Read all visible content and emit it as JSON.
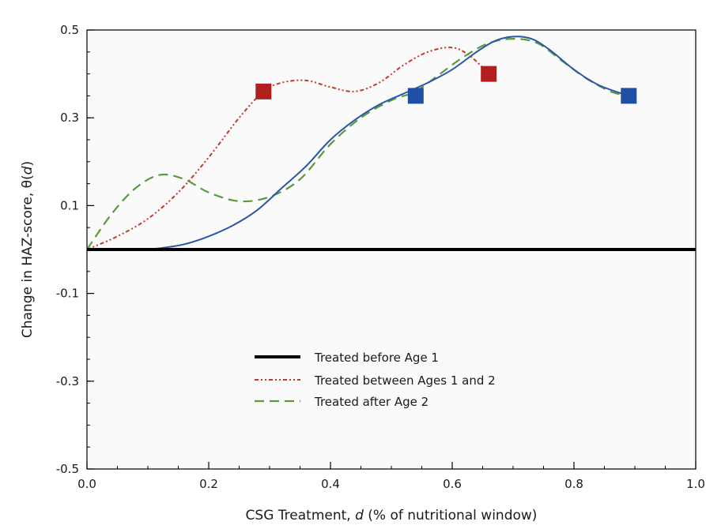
{
  "chart_data": {
    "type": "line",
    "xlabel": "CSG Treatment, d (% of nutritional window)",
    "xlabel_parts": {
      "pre": "CSG Treatment, ",
      "italic": "d",
      "post": " (% of nutritional window)"
    },
    "ylabel": "Change in HAZ-score, θ(d)",
    "ylabel_parts": {
      "pre": "Change in HAZ-score, θ(",
      "italic": "d",
      "post": ")"
    },
    "xlim": [
      0.0,
      1.0
    ],
    "ylim": [
      -0.5,
      0.5
    ],
    "x_ticks": [
      0.0,
      0.2,
      0.4,
      0.6,
      0.8,
      1.0
    ],
    "x_tick_labels": [
      "0.0",
      "0.2",
      "0.4",
      "0.6",
      "0.8",
      "1.0"
    ],
    "y_ticks": [
      0.5,
      0.3,
      0.1,
      -0.1,
      -0.3,
      -0.5
    ],
    "y_tick_labels": [
      "0.5",
      "0.3",
      "0.1",
      "-0.1",
      "-0.3",
      "-0.5"
    ],
    "grid": false,
    "legend_position": "lower-center",
    "plot_background": "#fafafa",
    "series": [
      {
        "name": "Treated before Age 1",
        "color": "#000000",
        "style": "solid-thick",
        "x": [
          0.0,
          1.0
        ],
        "y": [
          0.0,
          0.0
        ]
      },
      {
        "name": "Treated between Ages 1 and 2",
        "color": "#c0392b",
        "style": "dash-dot-dot",
        "x": [
          0.0,
          0.05,
          0.1,
          0.15,
          0.2,
          0.25,
          0.29,
          0.32,
          0.36,
          0.4,
          0.44,
          0.48,
          0.52,
          0.56,
          0.6,
          0.63,
          0.66
        ],
        "y": [
          0.0,
          0.03,
          0.07,
          0.13,
          0.21,
          0.3,
          0.36,
          0.38,
          0.385,
          0.37,
          0.36,
          0.38,
          0.42,
          0.45,
          0.46,
          0.44,
          0.4
        ]
      },
      {
        "name": "Treated after Age 2",
        "color": "#5a9a3a",
        "style": "long-dash",
        "x": [
          0.0,
          0.04,
          0.08,
          0.12,
          0.16,
          0.2,
          0.25,
          0.3,
          0.35,
          0.4,
          0.45,
          0.5,
          0.54,
          0.58,
          0.62,
          0.66,
          0.7,
          0.74,
          0.78,
          0.82,
          0.86,
          0.89
        ],
        "y": [
          0.0,
          0.08,
          0.14,
          0.17,
          0.16,
          0.13,
          0.11,
          0.12,
          0.16,
          0.24,
          0.3,
          0.34,
          0.36,
          0.4,
          0.44,
          0.47,
          0.48,
          0.47,
          0.43,
          0.39,
          0.36,
          0.35
        ]
      },
      {
        "name": "",
        "color": "#2a56a8",
        "style": "solid",
        "x": [
          0.09,
          0.12,
          0.16,
          0.2,
          0.24,
          0.28,
          0.32,
          0.36,
          0.4,
          0.44,
          0.48,
          0.52,
          0.56,
          0.6,
          0.64,
          0.67,
          0.7,
          0.73,
          0.76,
          0.8,
          0.84,
          0.89
        ],
        "y": [
          0.0,
          0.003,
          0.012,
          0.03,
          0.055,
          0.09,
          0.14,
          0.19,
          0.25,
          0.295,
          0.33,
          0.355,
          0.38,
          0.41,
          0.45,
          0.475,
          0.485,
          0.48,
          0.455,
          0.41,
          0.375,
          0.35
        ]
      }
    ],
    "markers": [
      {
        "x": 0.29,
        "y": 0.36,
        "color": "#b01e1e",
        "shape": "square"
      },
      {
        "x": 0.66,
        "y": 0.4,
        "color": "#b01e1e",
        "shape": "square"
      },
      {
        "x": 0.54,
        "y": 0.35,
        "color": "#1f4fa3",
        "shape": "square"
      },
      {
        "x": 0.89,
        "y": 0.35,
        "color": "#1f4fa3",
        "shape": "square"
      }
    ]
  }
}
